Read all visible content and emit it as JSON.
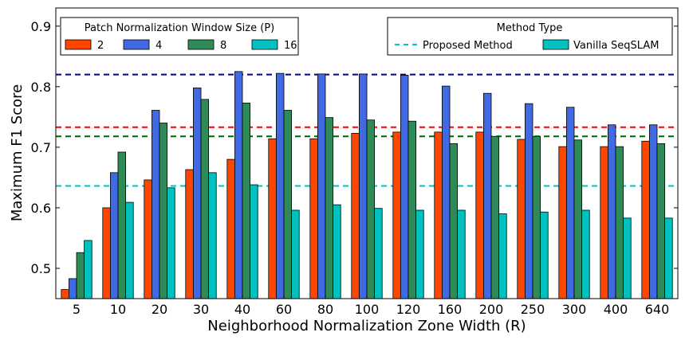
{
  "chart_data": {
    "type": "bar",
    "title": "",
    "xlabel": "Neighborhood Normalization Zone Width (R)",
    "ylabel": "Maximum F1 Score",
    "ylim": [
      0.45,
      0.93
    ],
    "yticks": [
      0.5,
      0.6,
      0.7,
      0.8,
      0.9
    ],
    "ytick_labels": [
      "0.5",
      "0.6",
      "0.7",
      "0.8",
      "0.9"
    ],
    "categories": [
      "5",
      "10",
      "20",
      "30",
      "40",
      "60",
      "80",
      "100",
      "120",
      "160",
      "200",
      "250",
      "300",
      "400",
      "640"
    ],
    "grid": false,
    "series": [
      {
        "name": "2",
        "color": "#ff4500",
        "values": [
          0.465,
          0.6,
          0.646,
          0.663,
          0.68,
          0.714,
          0.714,
          0.723,
          0.725,
          0.725,
          0.725,
          0.713,
          0.701,
          0.701,
          0.71
        ]
      },
      {
        "name": "4",
        "color": "#4169e1",
        "values": [
          0.483,
          0.658,
          0.761,
          0.798,
          0.825,
          0.822,
          0.821,
          0.821,
          0.819,
          0.801,
          0.789,
          0.772,
          0.766,
          0.737,
          0.737
        ]
      },
      {
        "name": "8",
        "color": "#2e8b57",
        "values": [
          0.526,
          0.692,
          0.74,
          0.779,
          0.773,
          0.761,
          0.749,
          0.745,
          0.743,
          0.706,
          0.718,
          0.718,
          0.712,
          0.701,
          0.706
        ]
      },
      {
        "name": "16",
        "color": "#00c0c0",
        "values": [
          0.546,
          0.609,
          0.633,
          0.658,
          0.638,
          0.596,
          0.605,
          0.599,
          0.596,
          0.596,
          0.59,
          0.593,
          0.596,
          0.583,
          0.583
        ]
      }
    ],
    "reference_lines": [
      {
        "value": 0.82,
        "color": "#00008b"
      },
      {
        "value": 0.733,
        "color": "#ff0000"
      },
      {
        "value": 0.718,
        "color": "#006400"
      },
      {
        "value": 0.636,
        "color": "#00c0c0"
      }
    ],
    "legend_patch": {
      "title": "Patch Normalization Window Size (P)",
      "placement": "top-left",
      "entries": [
        "2",
        "4",
        "8",
        "16"
      ]
    },
    "legend_method": {
      "title": "Method Type",
      "placement": "top-right",
      "entries": [
        {
          "label": "Proposed Method",
          "marker": "dashed-line",
          "color": "#00c0c0"
        },
        {
          "label": "Vanilla SeqSLAM",
          "marker": "patch",
          "color": "#00c0c0"
        }
      ]
    }
  }
}
